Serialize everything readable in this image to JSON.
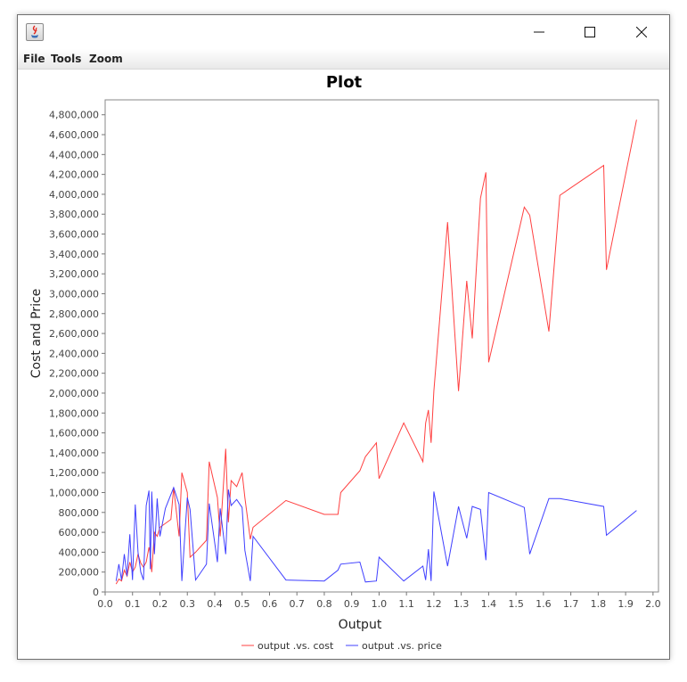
{
  "window": {
    "menu": {
      "file": "File",
      "tools": "Tools",
      "zoom": "Zoom"
    },
    "icons": [
      "java-app-icon",
      "minimize-icon",
      "maximize-icon",
      "close-icon"
    ]
  },
  "chart_data": {
    "type": "line",
    "title": "Plot",
    "xlabel": "Output",
    "ylabel": "Cost and Price",
    "xlim": [
      0.0,
      2.02
    ],
    "ylim": [
      0,
      4950000
    ],
    "x_ticks": [
      "0.0",
      "0.1",
      "0.2",
      "0.3",
      "0.4",
      "0.5",
      "0.6",
      "0.7",
      "0.8",
      "0.9",
      "1.0",
      "1.1",
      "1.2",
      "1.3",
      "1.4",
      "1.5",
      "1.6",
      "1.7",
      "1.8",
      "1.9",
      "2.0"
    ],
    "y_ticks": [
      "0",
      "200,000",
      "400,000",
      "600,000",
      "800,000",
      "1,000,000",
      "1,200,000",
      "1,400,000",
      "1,600,000",
      "1,800,000",
      "2,000,000",
      "2,200,000",
      "2,400,000",
      "2,600,000",
      "2,800,000",
      "3,000,000",
      "3,200,000",
      "3,400,000",
      "3,600,000",
      "3,800,000",
      "4,000,000",
      "4,200,000",
      "4,400,000",
      "4,600,000",
      "4,800,000"
    ],
    "grid": false,
    "legend_position": "bottom",
    "series": [
      {
        "name": "output .vs. cost",
        "color": "#ff4040",
        "x": [
          0.04,
          0.05,
          0.06,
          0.07,
          0.08,
          0.09,
          0.1,
          0.11,
          0.12,
          0.13,
          0.14,
          0.15,
          0.16,
          0.165,
          0.17,
          0.18,
          0.19,
          0.2,
          0.24,
          0.25,
          0.27,
          0.28,
          0.3,
          0.31,
          0.33,
          0.37,
          0.38,
          0.41,
          0.42,
          0.44,
          0.45,
          0.46,
          0.48,
          0.5,
          0.51,
          0.53,
          0.54,
          0.66,
          0.8,
          0.85,
          0.86,
          0.93,
          0.95,
          0.99,
          1.0,
          1.09,
          1.16,
          1.17,
          1.18,
          1.19,
          1.2,
          1.25,
          1.29,
          1.32,
          1.34,
          1.37,
          1.39,
          1.4,
          1.53,
          1.55,
          1.62,
          1.66,
          1.82,
          1.83,
          1.94
        ],
        "y": [
          80000,
          130000,
          110000,
          220000,
          160000,
          300000,
          200000,
          250000,
          380000,
          290000,
          250000,
          300000,
          450000,
          380000,
          200000,
          600000,
          560000,
          650000,
          730000,
          1050000,
          560000,
          1200000,
          1000000,
          350000,
          400000,
          520000,
          1310000,
          950000,
          560000,
          1440000,
          700000,
          1120000,
          1060000,
          1200000,
          950000,
          530000,
          650000,
          920000,
          780000,
          780000,
          1000000,
          1220000,
          1360000,
          1500000,
          1140000,
          1700000,
          1310000,
          1700000,
          1830000,
          1500000,
          2020000,
          3720000,
          2020000,
          3130000,
          2550000,
          3960000,
          4220000,
          2310000,
          3870000,
          3790000,
          2620000,
          3990000,
          4290000,
          3240000,
          4750000
        ]
      },
      {
        "name": "output .vs. price",
        "color": "#4040ff",
        "x": [
          0.04,
          0.05,
          0.06,
          0.07,
          0.08,
          0.09,
          0.1,
          0.11,
          0.12,
          0.13,
          0.14,
          0.15,
          0.16,
          0.165,
          0.17,
          0.18,
          0.19,
          0.2,
          0.22,
          0.25,
          0.27,
          0.28,
          0.3,
          0.31,
          0.33,
          0.37,
          0.38,
          0.41,
          0.42,
          0.44,
          0.45,
          0.46,
          0.48,
          0.5,
          0.51,
          0.53,
          0.54,
          0.66,
          0.8,
          0.85,
          0.86,
          0.93,
          0.95,
          0.99,
          1.0,
          1.09,
          1.16,
          1.17,
          1.18,
          1.19,
          1.2,
          1.25,
          1.29,
          1.32,
          1.34,
          1.37,
          1.39,
          1.4,
          1.53,
          1.55,
          1.62,
          1.66,
          1.82,
          1.83,
          1.94
        ],
        "y": [
          110000,
          280000,
          120000,
          380000,
          160000,
          580000,
          120000,
          880000,
          400000,
          200000,
          120000,
          870000,
          1020000,
          230000,
          1010000,
          380000,
          940000,
          560000,
          840000,
          1050000,
          880000,
          110000,
          950000,
          830000,
          120000,
          280000,
          890000,
          300000,
          840000,
          380000,
          1030000,
          870000,
          930000,
          850000,
          420000,
          110000,
          560000,
          120000,
          110000,
          220000,
          280000,
          300000,
          100000,
          110000,
          350000,
          110000,
          260000,
          120000,
          430000,
          110000,
          1010000,
          260000,
          860000,
          540000,
          860000,
          830000,
          320000,
          1000000,
          850000,
          380000,
          940000,
          940000,
          860000,
          570000,
          820000
        ]
      }
    ]
  }
}
